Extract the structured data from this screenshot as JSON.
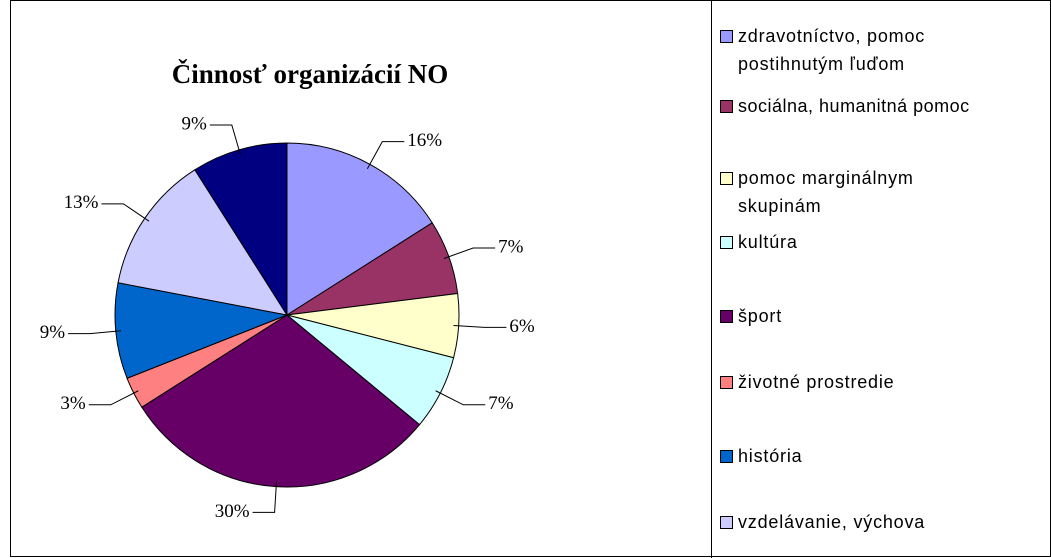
{
  "chart_data": {
    "type": "pie",
    "title": "Činnosť organizácií NO",
    "categories": [
      "zdravotníctvo, pomoc postihnutým ľuďom",
      "sociálna, humanitná pomoc",
      "pomoc marginálnym skupinám",
      "kultúra",
      "šport",
      "životné prostredie",
      "história",
      "vzdelávanie, výchova",
      null
    ],
    "values": [
      16,
      7,
      6,
      7,
      30,
      3,
      9,
      13,
      9
    ],
    "value_labels": [
      "16%",
      "7%",
      "6%",
      "7%",
      "30%",
      "3%",
      "9%",
      "13%",
      "9%"
    ],
    "colors": [
      "#9999ff",
      "#993366",
      "#ffffcc",
      "#ccffff",
      "#660066",
      "#ff8080",
      "#0066cc",
      "#ccccff",
      "#000080"
    ]
  }
}
